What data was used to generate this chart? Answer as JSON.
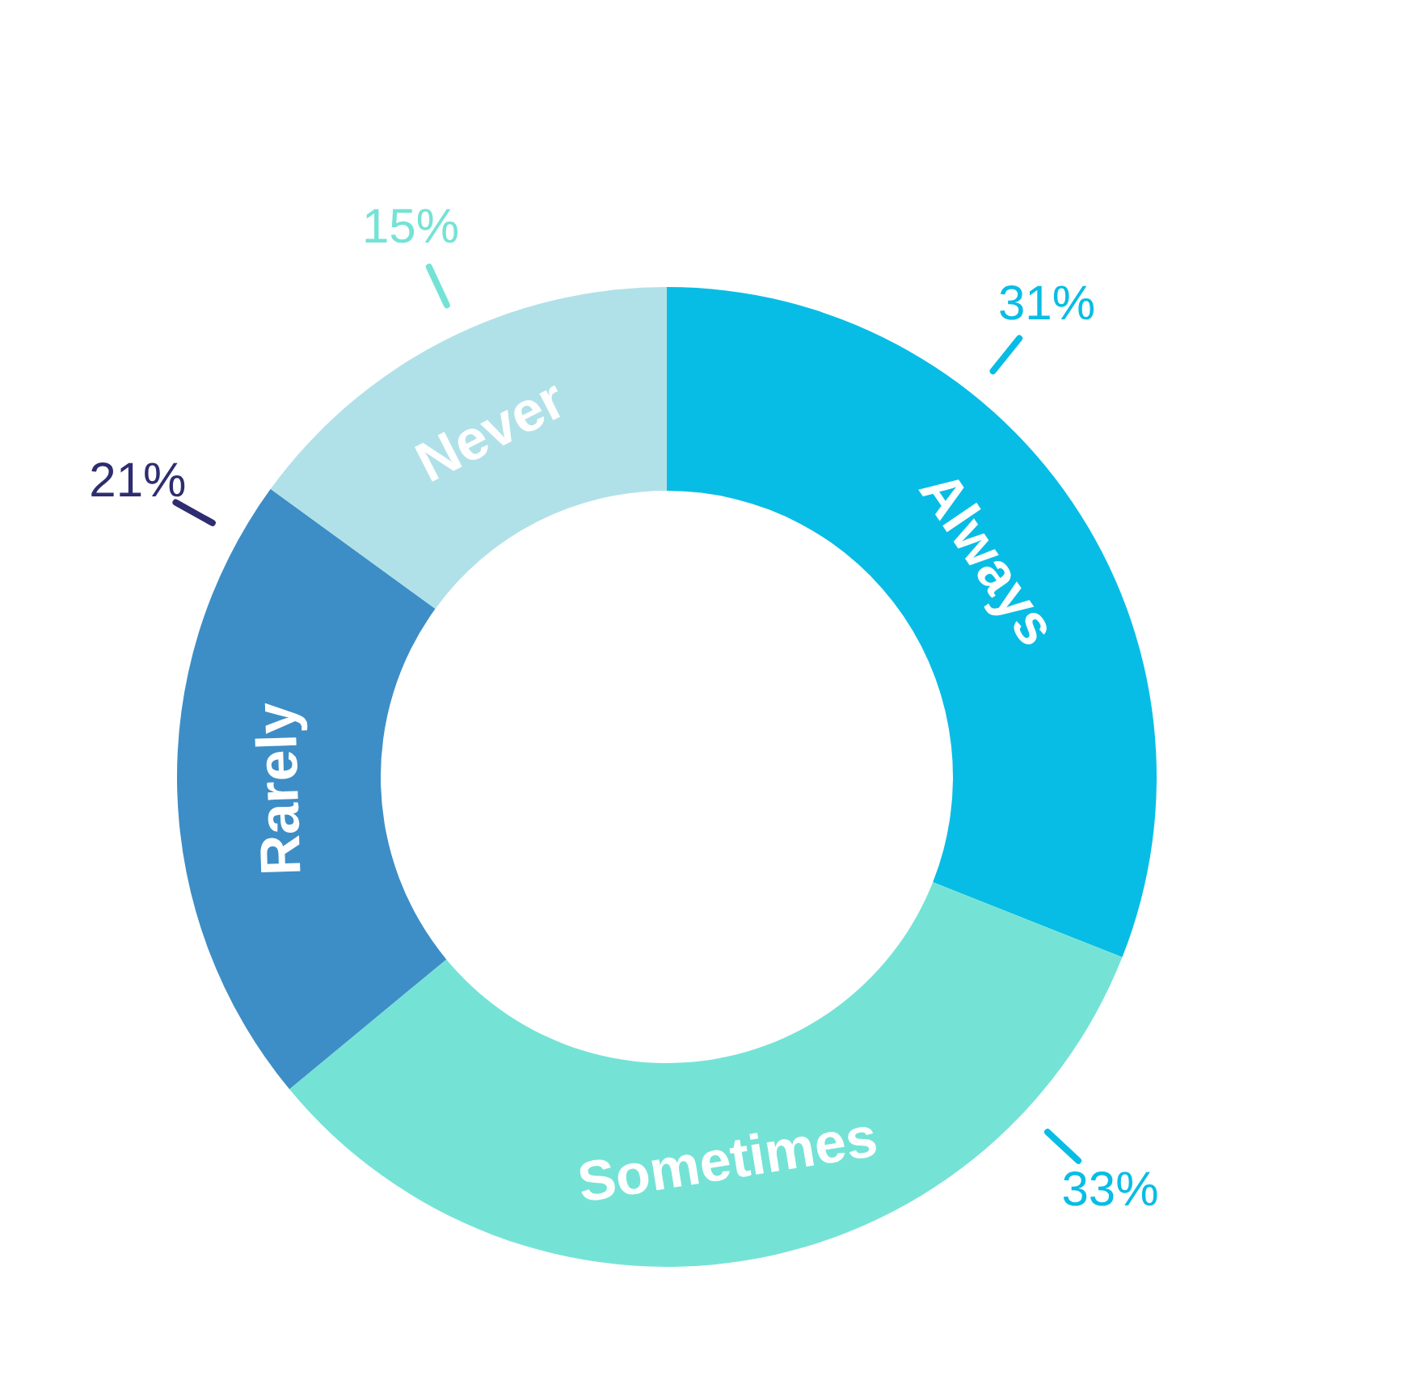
{
  "chart_data": {
    "type": "donut",
    "categories": [
      "Always",
      "Sometimes",
      "Rarely",
      "Never"
    ],
    "values": [
      31,
      33,
      21,
      15
    ],
    "colors": [
      "#08bde5",
      "#74e3d6",
      "#3d8ec6",
      "#b0e1e8"
    ],
    "value_labels": [
      "31%",
      "33%",
      "21%",
      "15%"
    ]
  }
}
